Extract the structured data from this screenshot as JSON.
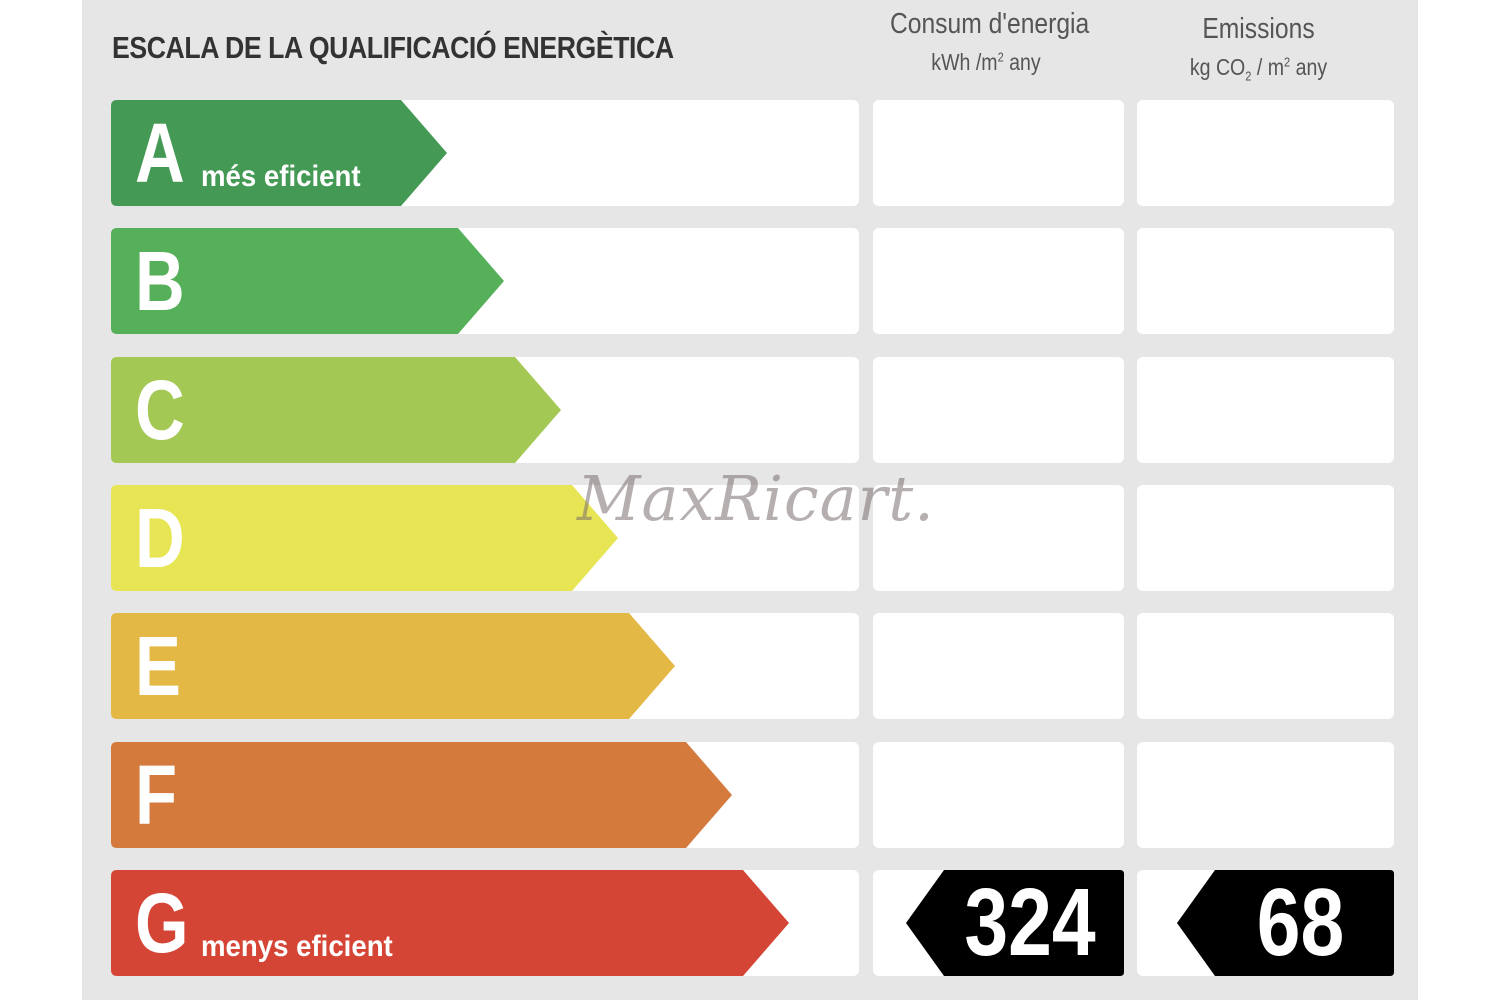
{
  "title": "ESCALA DE LA QUALIFICACIÓ ENERGÈTICA",
  "columns": {
    "consum": {
      "title": "Consum d'energia",
      "unit_base": "kWh /m",
      "unit_sup": "2",
      "unit_tail": " any"
    },
    "emissions": {
      "title": "Emissions",
      "unit_a": "kg CO",
      "unit_sub": "2",
      "unit_b": " / m",
      "unit_sup": "2",
      "unit_tail": " any"
    }
  },
  "classes": [
    {
      "letter": "A",
      "label": "més eficient",
      "color": "#449a55"
    },
    {
      "letter": "B",
      "label": "",
      "color": "#56b05a"
    },
    {
      "letter": "C",
      "label": "",
      "color": "#a3c853"
    },
    {
      "letter": "D",
      "label": "",
      "color": "#e8e555"
    },
    {
      "letter": "E",
      "label": "",
      "color": "#e4b844"
    },
    {
      "letter": "F",
      "label": "",
      "color": "#d47a3c"
    },
    {
      "letter": "G",
      "label": "menys eficient",
      "color": "#d44536"
    }
  ],
  "rating": {
    "class": "G",
    "consum_value": "324",
    "emissions_value": "68"
  },
  "watermark": "MaxRicart."
}
